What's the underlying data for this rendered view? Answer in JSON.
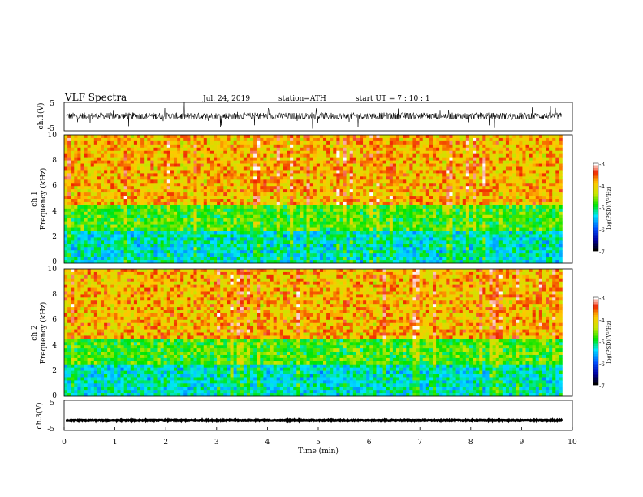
{
  "header": {
    "title": "VLF  Spectra",
    "date": "Jul.  24,  2019",
    "station": "station=ATH",
    "start": "start  UT  =    7  : 10 : 1"
  },
  "chart_data": [
    {
      "type": "line",
      "name": "ch1-waveform",
      "ylabel": "ch.1(V)",
      "ylim": [
        -5,
        5
      ],
      "yticks": [
        "5",
        "-5"
      ],
      "xlim": [
        0,
        10
      ],
      "mean": 0.2,
      "spread": 1.2
    },
    {
      "type": "heatmap",
      "name": "ch1-spectrogram",
      "ylabel_top": "ch.1",
      "ylabel": "Frequency  (kHz)",
      "ylim": [
        0,
        10
      ],
      "yticks": [
        "0",
        "2",
        "4",
        "6",
        "8",
        "10"
      ],
      "xlim": [
        0,
        9.8
      ],
      "colorbar": {
        "label": "log(PSD)(V²/Hz)",
        "range": [
          -7,
          -3
        ],
        "ticks": [
          "-3",
          "-4",
          "-5",
          "-6",
          "-7"
        ]
      }
    },
    {
      "type": "heatmap",
      "name": "ch2-spectrogram",
      "ylabel_top": "ch.2",
      "ylabel": "Frequency  (kHz)",
      "ylim": [
        0,
        10
      ],
      "yticks": [
        "0",
        "2",
        "4",
        "6",
        "8",
        "10"
      ],
      "xlim": [
        0,
        9.8
      ],
      "colorbar": {
        "label": "log(PSD)(V²/Hz)",
        "range": [
          -7,
          -3
        ],
        "ticks": [
          "-3",
          "-4",
          "-5",
          "-6",
          "-7"
        ]
      }
    },
    {
      "type": "line",
      "name": "ch3-waveform",
      "ylabel": "ch.3(V)",
      "ylim": [
        -5,
        5
      ],
      "yticks": [
        "5",
        "-5"
      ],
      "xlim": [
        0,
        10
      ],
      "mean": -1.7,
      "spread": 0.15
    }
  ],
  "xaxis": {
    "label": "Time  (min)",
    "range": [
      0,
      10
    ],
    "ticks": [
      "0",
      "1",
      "2",
      "3",
      "4",
      "5",
      "6",
      "7",
      "8",
      "9",
      "10"
    ]
  }
}
